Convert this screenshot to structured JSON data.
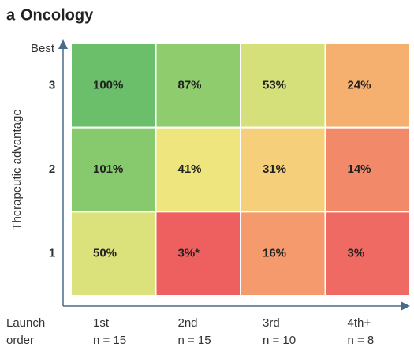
{
  "chart_data": {
    "type": "heatmap",
    "panel_label": "a",
    "title": "Oncology",
    "y_label": "Therapeutic advantage",
    "y_top_label": "Best",
    "x_label_lines": [
      "Launch",
      "order"
    ],
    "x_categories": [
      "1st",
      "2nd",
      "3rd",
      "4th+"
    ],
    "x_sublabels": [
      "n = 15",
      "n = 15",
      "n = 10",
      "n = 8"
    ],
    "y_categories": [
      "3",
      "2",
      "1"
    ],
    "values": [
      [
        100,
        87,
        53,
        24
      ],
      [
        101,
        41,
        31,
        14
      ],
      [
        50,
        3,
        16,
        3
      ]
    ],
    "value_labels": [
      [
        "100%",
        "87%",
        "53%",
        "24%"
      ],
      [
        "101%",
        "41%",
        "31%",
        "14%"
      ],
      [
        "50%",
        "3%*",
        "16%",
        "3%"
      ]
    ],
    "colors": [
      [
        "#6cbf6a",
        "#8fcc6e",
        "#d6e07a",
        "#f5b070"
      ],
      [
        "#87c96d",
        "#eee57f",
        "#f5cf7a",
        "#f28a6a"
      ],
      [
        "#dbe27b",
        "#ee5f5f",
        "#f49a6c",
        "#ef6a62"
      ]
    ]
  }
}
